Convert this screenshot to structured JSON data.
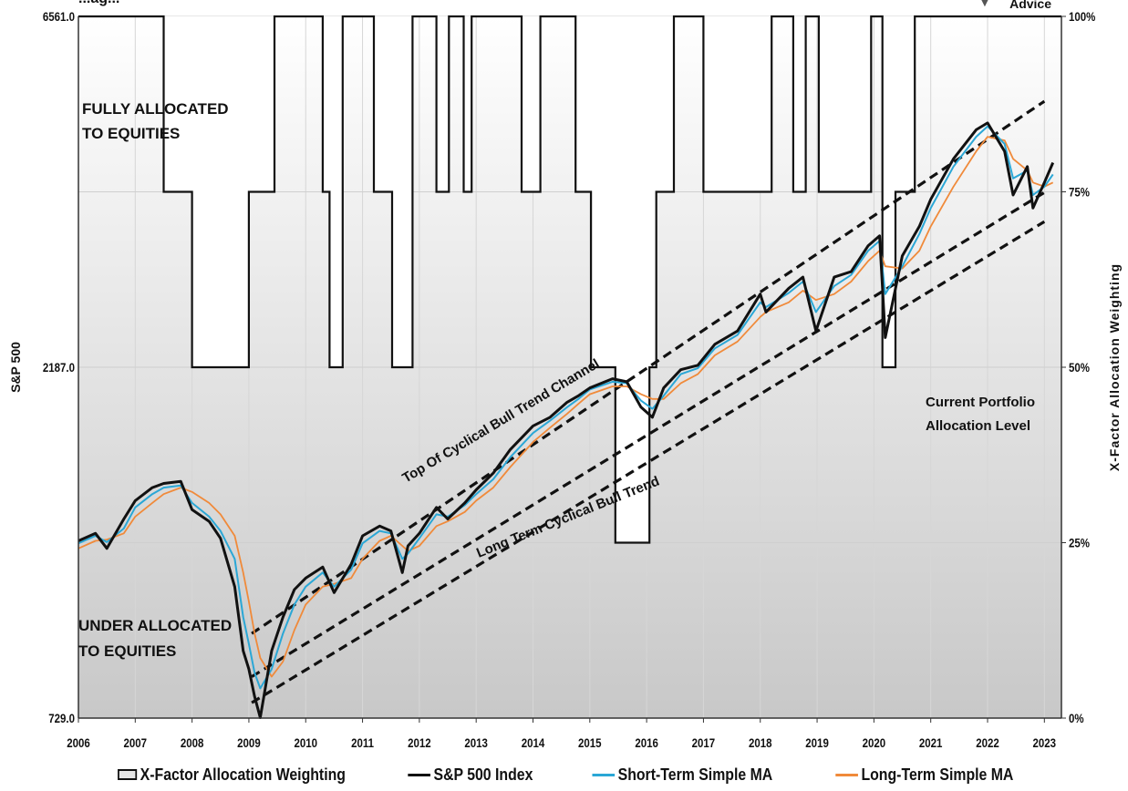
{
  "header": {
    "clipped_title": "...ag...",
    "brand": "Advice"
  },
  "chart_data": {
    "type": "line",
    "left_axis": {
      "label": "S&P 500",
      "ticks": [
        "6561.0",
        "2187.0",
        "729.0"
      ],
      "scale": "log",
      "range": [
        729,
        6561
      ]
    },
    "right_axis": {
      "label": "X-Factor Allocation Weighting",
      "ticks": [
        "100%",
        "75%",
        "50%",
        "25%",
        "0%"
      ],
      "range": [
        0,
        100
      ]
    },
    "x_ticks": [
      "2006",
      "2007",
      "2008",
      "2009",
      "2010",
      "2011",
      "2012",
      "2013",
      "2014",
      "2015",
      "2016",
      "2017",
      "2018",
      "2019",
      "2020",
      "2021",
      "2022",
      "2023"
    ],
    "x_range": [
      2006,
      2023.3
    ],
    "legend": {
      "position": "bottom",
      "items": [
        {
          "label": "X-Factor Allocation Weighting",
          "kind": "box",
          "color": "#111111"
        },
        {
          "label": "S&P 500 Index",
          "kind": "line",
          "color": "#111111"
        },
        {
          "label": "Short-Term Simple MA",
          "kind": "line",
          "color": "#2aa7d6"
        },
        {
          "label": "Long-Term Simple MA",
          "kind": "line",
          "color": "#f08a3a"
        }
      ]
    },
    "annotations": {
      "fully_allocated": [
        "FULLY ALLOCATED",
        "TO EQUITIES"
      ],
      "under_allocated": [
        "UNDER ALLOCATED",
        "TO EQUITIES"
      ],
      "current_level": [
        "Current Portfolio",
        "Allocation Level"
      ],
      "top_channel": "Top Of Cyclical Bull Trend Channel",
      "long_term": "Long Term Cyclical Bull Trend"
    },
    "series": [
      {
        "name": "X-Factor Allocation Weighting",
        "x": [
          2006,
          2007.5,
          2007.5,
          2008,
          2008,
          2009,
          2009,
          2009.45,
          2009.45,
          2010.3,
          2010.3,
          2010.42,
          2010.42,
          2010.65,
          2010.65,
          2011.2,
          2011.2,
          2011.52,
          2011.52,
          2011.88,
          2011.88,
          2012.3,
          2012.3,
          2012.52,
          2012.52,
          2012.78,
          2012.78,
          2012.92,
          2012.92,
          2013.8,
          2013.8,
          2014.13,
          2014.13,
          2014.75,
          2014.75,
          2015.02,
          2015.02,
          2015.45,
          2015.45,
          2016.05,
          2016.05,
          2016.17,
          2016.17,
          2016.48,
          2016.48,
          2017,
          2017,
          2018.2,
          2018.2,
          2018.58,
          2018.58,
          2018.8,
          2018.8,
          2019.03,
          2019.03,
          2019.95,
          2019.95,
          2020.15,
          2020.15,
          2020.38,
          2020.38,
          2020.72,
          2020.72,
          2023.3
        ],
        "values": [
          100,
          100,
          75,
          75,
          50,
          50,
          75,
          75,
          100,
          100,
          75,
          75,
          50,
          50,
          100,
          100,
          75,
          75,
          50,
          50,
          100,
          100,
          75,
          75,
          100,
          100,
          75,
          75,
          100,
          100,
          75,
          75,
          100,
          100,
          75,
          75,
          50,
          50,
          25,
          25,
          50,
          50,
          75,
          75,
          100,
          100,
          75,
          75,
          100,
          100,
          75,
          75,
          100,
          100,
          75,
          75,
          100,
          100,
          50,
          50,
          75,
          75,
          100,
          100
        ]
      },
      {
        "name": "S&P 500 Index",
        "x": [
          2006,
          2006.3,
          2006.5,
          2006.8,
          2007.0,
          2007.3,
          2007.5,
          2007.8,
          2008.0,
          2008.3,
          2008.5,
          2008.75,
          2008.9,
          2009.0,
          2009.1,
          2009.2,
          2009.4,
          2009.6,
          2009.8,
          2010.0,
          2010.3,
          2010.5,
          2010.8,
          2011.0,
          2011.3,
          2011.5,
          2011.7,
          2011.8,
          2012.0,
          2012.3,
          2012.5,
          2012.8,
          2013.0,
          2013.3,
          2013.6,
          2014.0,
          2014.3,
          2014.6,
          2014.8,
          2015.0,
          2015.4,
          2015.65,
          2015.9,
          2016.1,
          2016.3,
          2016.6,
          2016.9,
          2017.2,
          2017.6,
          2018.0,
          2018.1,
          2018.5,
          2018.75,
          2018.98,
          2019.3,
          2019.6,
          2019.9,
          2020.1,
          2020.2,
          2020.5,
          2020.8,
          2021.0,
          2021.4,
          2021.8,
          2022.0,
          2022.3,
          2022.45,
          2022.7,
          2022.8,
          2023.0,
          2023.15
        ],
        "values": [
          1270,
          1300,
          1240,
          1360,
          1440,
          1500,
          1520,
          1530,
          1400,
          1350,
          1280,
          1100,
          900,
          850,
          780,
          730,
          900,
          1000,
          1090,
          1130,
          1170,
          1080,
          1180,
          1290,
          1330,
          1310,
          1150,
          1250,
          1300,
          1410,
          1360,
          1430,
          1490,
          1570,
          1690,
          1820,
          1870,
          1960,
          2000,
          2050,
          2110,
          2090,
          1930,
          1870,
          2050,
          2170,
          2200,
          2350,
          2450,
          2750,
          2600,
          2800,
          2900,
          2450,
          2900,
          2950,
          3200,
          3300,
          2400,
          3100,
          3400,
          3700,
          4200,
          4600,
          4700,
          4300,
          3750,
          4100,
          3600,
          3900,
          4150
        ]
      },
      {
        "name": "Short-Term Simple MA",
        "x": [
          2006,
          2006.3,
          2006.5,
          2006.8,
          2007.0,
          2007.3,
          2007.5,
          2007.8,
          2008.0,
          2008.3,
          2008.5,
          2008.75,
          2008.9,
          2009.0,
          2009.1,
          2009.2,
          2009.4,
          2009.6,
          2009.8,
          2010.0,
          2010.3,
          2010.5,
          2010.8,
          2011.0,
          2011.3,
          2011.5,
          2011.7,
          2011.8,
          2012.0,
          2012.3,
          2012.5,
          2012.8,
          2013.0,
          2013.3,
          2013.6,
          2014.0,
          2014.3,
          2014.6,
          2014.8,
          2015.0,
          2015.4,
          2015.65,
          2015.9,
          2016.1,
          2016.3,
          2016.6,
          2016.9,
          2017.2,
          2017.6,
          2018.0,
          2018.1,
          2018.5,
          2018.75,
          2018.98,
          2019.3,
          2019.6,
          2019.9,
          2020.1,
          2020.2,
          2020.5,
          2020.8,
          2021.0,
          2021.4,
          2021.8,
          2022.0,
          2022.3,
          2022.45,
          2022.7,
          2022.8,
          2023.0,
          2023.15
        ],
        "values": [
          1260,
          1290,
          1265,
          1320,
          1410,
          1470,
          1500,
          1510,
          1430,
          1370,
          1310,
          1200,
          1000,
          920,
          840,
          800,
          850,
          950,
          1040,
          1100,
          1150,
          1100,
          1160,
          1260,
          1310,
          1300,
          1200,
          1220,
          1280,
          1380,
          1370,
          1420,
          1470,
          1540,
          1650,
          1780,
          1850,
          1930,
          1980,
          2040,
          2090,
          2080,
          1970,
          1920,
          2000,
          2140,
          2180,
          2320,
          2420,
          2680,
          2640,
          2760,
          2860,
          2600,
          2820,
          2920,
          3150,
          3250,
          2750,
          3000,
          3320,
          3600,
          4100,
          4500,
          4650,
          4400,
          3950,
          4050,
          3750,
          3850,
          4000
        ]
      },
      {
        "name": "Long-Term Simple MA",
        "x": [
          2006,
          2006.3,
          2006.5,
          2006.8,
          2007.0,
          2007.3,
          2007.5,
          2007.8,
          2008.0,
          2008.3,
          2008.5,
          2008.75,
          2008.9,
          2009.0,
          2009.1,
          2009.2,
          2009.4,
          2009.6,
          2009.8,
          2010.0,
          2010.3,
          2010.5,
          2010.8,
          2011.0,
          2011.3,
          2011.5,
          2011.7,
          2011.8,
          2012.0,
          2012.3,
          2012.5,
          2012.8,
          2013.0,
          2013.3,
          2013.6,
          2014.0,
          2014.3,
          2014.6,
          2014.8,
          2015.0,
          2015.4,
          2015.65,
          2015.9,
          2016.1,
          2016.3,
          2016.6,
          2016.9,
          2017.2,
          2017.6,
          2018.0,
          2018.1,
          2018.5,
          2018.75,
          2018.98,
          2019.3,
          2019.6,
          2019.9,
          2020.1,
          2020.2,
          2020.5,
          2020.8,
          2021.0,
          2021.4,
          2021.8,
          2022.0,
          2022.3,
          2022.45,
          2022.7,
          2022.8,
          2023.0,
          2023.15
        ],
        "values": [
          1240,
          1270,
          1275,
          1300,
          1370,
          1430,
          1470,
          1500,
          1480,
          1430,
          1380,
          1290,
          1150,
          1050,
          950,
          880,
          830,
          870,
          960,
          1040,
          1100,
          1110,
          1130,
          1200,
          1270,
          1290,
          1250,
          1230,
          1250,
          1330,
          1350,
          1390,
          1440,
          1500,
          1600,
          1730,
          1810,
          1890,
          1950,
          2010,
          2060,
          2060,
          2010,
          1980,
          1980,
          2080,
          2140,
          2270,
          2370,
          2560,
          2600,
          2680,
          2780,
          2700,
          2750,
          2860,
          3050,
          3150,
          3000,
          2980,
          3150,
          3400,
          3850,
          4300,
          4500,
          4450,
          4200,
          4050,
          3900,
          3850,
          3900
        ]
      }
    ]
  }
}
